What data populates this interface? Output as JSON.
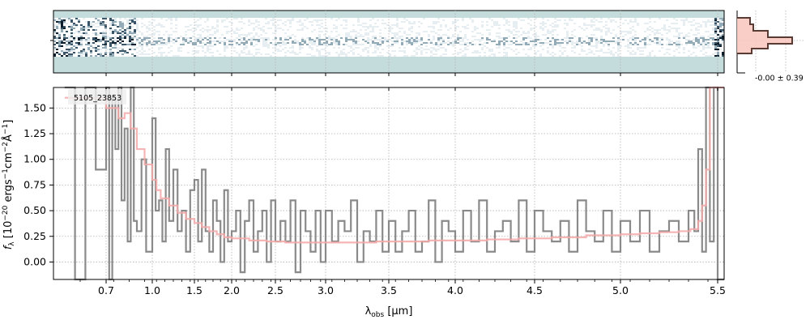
{
  "chart_data": {
    "type": "line",
    "title": "",
    "annotation": "5105_23853",
    "xlabel": "λobs [μm]",
    "xlabel_parts": {
      "main": "λ",
      "sub": "obs",
      "unit": " [μm]"
    },
    "ylabel": "fλ [10⁻²⁰ ergs⁻¹cm⁻²Å⁻¹]",
    "ylabel_parts": {
      "f": "f",
      "fsub": "λ",
      "open": " [10",
      "exp1": "−20",
      "mid": " ergs",
      "exp2": "−1",
      "cm": "cm",
      "exp3": "−2",
      "A": "Å",
      "exp4": "−1",
      "close": "]"
    },
    "x_scale": "nonlinear (dispersion-scaled)",
    "xlim": [
      0.6,
      5.52
    ],
    "ylim": [
      -0.17,
      1.7
    ],
    "x_ticks": [
      "0.7",
      "1.0",
      "1.5",
      "2.0",
      "2.5",
      "3.0",
      "3.5",
      "4.0",
      "4.5",
      "5.0",
      "5.5"
    ],
    "y_ticks": [
      "0.00",
      "0.25",
      "0.50",
      "0.75",
      "1.00",
      "1.25",
      "1.50"
    ],
    "grid": true,
    "histogram_label": "-0.00 ± 0.39",
    "colors": {
      "data": "#8a8a8a",
      "model": "#f4a8a8",
      "model_high": "#e35a5a",
      "stamp_bg": "#c5dcdc",
      "hist": "#5c3a34",
      "hist_fill": "#f7c9c1"
    },
    "series": [
      {
        "style": "steps",
        "x": [
          0.62,
          0.64,
          0.66,
          0.68,
          0.7,
          0.72,
          0.74,
          0.76,
          0.78,
          0.8,
          0.82,
          0.84,
          0.86,
          0.88,
          0.9,
          0.93,
          0.96,
          1.0,
          1.04,
          1.08,
          1.12,
          1.16,
          1.2,
          1.25,
          1.3,
          1.35,
          1.4,
          1.45,
          1.5,
          1.55,
          1.6,
          1.65,
          1.7,
          1.75,
          1.8,
          1.85,
          1.9,
          1.95,
          2.0,
          2.05,
          2.1,
          2.15,
          2.2,
          2.25,
          2.3,
          2.35,
          2.4,
          2.45,
          2.5,
          2.55,
          2.6,
          2.65,
          2.7,
          2.75,
          2.8,
          2.85,
          2.9,
          2.95,
          3.0,
          3.05,
          3.1,
          3.15,
          3.2,
          3.25,
          3.3,
          3.35,
          3.4,
          3.45,
          3.5,
          3.55,
          3.6,
          3.65,
          3.7,
          3.75,
          3.8,
          3.85,
          3.9,
          3.95,
          4.0,
          4.05,
          4.1,
          4.15,
          4.2,
          4.25,
          4.3,
          4.35,
          4.4,
          4.45,
          4.5,
          4.55,
          4.6,
          4.65,
          4.7,
          4.75,
          4.8,
          4.85,
          4.9,
          4.95,
          5.0,
          5.05,
          5.1,
          5.15,
          5.2,
          5.25,
          5.3,
          5.35,
          5.38,
          5.4,
          5.42,
          5.44,
          5.46,
          5.48,
          5.5
        ],
        "y": [
          1.7,
          -0.17,
          1.7,
          0.9,
          1.7,
          -0.17,
          1.6,
          1.1,
          1.7,
          0.6,
          1.3,
          0.2,
          1.7,
          0.4,
          0.3,
          1.0,
          0.1,
          1.4,
          0.5,
          0.6,
          0.2,
          1.1,
          0.4,
          0.9,
          0.3,
          0.5,
          0.1,
          0.7,
          0.8,
          0.2,
          0.9,
          0.3,
          0.1,
          0.6,
          0.4,
          0.0,
          0.7,
          0.2,
          0.3,
          0.5,
          -0.1,
          0.4,
          0.6,
          0.1,
          0.3,
          0.5,
          0.0,
          0.6,
          0.2,
          0.4,
          0.2,
          0.6,
          -0.1,
          0.5,
          0.3,
          0.1,
          0.5,
          0.0,
          0.5,
          0.2,
          0.4,
          0.3,
          0.6,
          0.0,
          0.3,
          0.2,
          0.5,
          0.1,
          0.4,
          0.1,
          0.3,
          0.5,
          0.1,
          0.2,
          0.6,
          0.0,
          0.4,
          0.3,
          0.1,
          0.5,
          0.2,
          0.6,
          0.1,
          0.3,
          0.4,
          0.2,
          0.6,
          0.1,
          0.5,
          0.3,
          0.2,
          0.4,
          0.1,
          0.6,
          0.3,
          0.2,
          0.5,
          0.1,
          0.4,
          0.2,
          0.5,
          0.1,
          0.3,
          0.4,
          0.2,
          0.5,
          0.3,
          1.1,
          0.1,
          1.7,
          0.2,
          1.7,
          -0.17
        ]
      },
      {
        "style": "steps",
        "x": [
          0.62,
          0.7,
          0.78,
          0.82,
          0.86,
          0.9,
          0.95,
          1.0,
          1.05,
          1.1,
          1.2,
          1.3,
          1.4,
          1.5,
          1.6,
          1.7,
          1.8,
          1.9,
          2.0,
          2.2,
          2.4,
          2.6,
          2.8,
          3.0,
          3.2,
          3.4,
          3.6,
          3.8,
          4.0,
          4.2,
          4.4,
          4.6,
          4.8,
          5.0,
          5.1,
          5.2,
          5.3,
          5.36,
          5.4,
          5.42,
          5.44,
          5.46,
          5.48,
          5.5
        ],
        "y": [
          1.6,
          1.5,
          1.4,
          1.45,
          1.3,
          1.1,
          0.95,
          0.8,
          0.7,
          0.62,
          0.55,
          0.48,
          0.42,
          0.38,
          0.34,
          0.3,
          0.27,
          0.24,
          0.23,
          0.21,
          0.2,
          0.19,
          0.19,
          0.19,
          0.19,
          0.2,
          0.2,
          0.21,
          0.21,
          0.22,
          0.23,
          0.24,
          0.26,
          0.27,
          0.28,
          0.29,
          0.3,
          0.32,
          0.4,
          0.55,
          0.9,
          1.7,
          1.7,
          1.7
        ]
      }
    ]
  }
}
